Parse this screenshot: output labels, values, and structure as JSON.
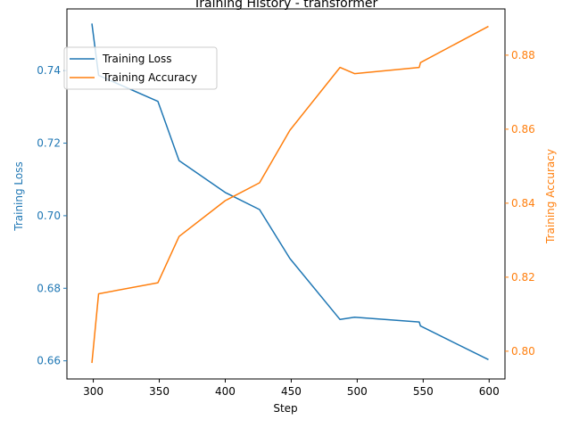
{
  "chart_data": {
    "type": "line",
    "title": "Training History - transformer",
    "xlabel": "Step",
    "ylabel_left": "Training Loss",
    "ylabel_right": "Training Accuracy",
    "xlim": [
      280,
      612
    ],
    "xticks": [
      300,
      350,
      400,
      450,
      500,
      550,
      600
    ],
    "ylim_left": [
      0.655,
      0.757
    ],
    "yticks_left": [
      0.66,
      0.68,
      0.7,
      0.72,
      0.74
    ],
    "ylim_right": [
      0.7925,
      0.8925
    ],
    "yticks_right": [
      0.8,
      0.82,
      0.84,
      0.86,
      0.88
    ],
    "left_color": "#1f77b4",
    "right_color": "#ff7f0e",
    "legend_position": "upper-left",
    "series": [
      {
        "name": "Training Loss",
        "axis": "left",
        "color": "#1f77b4",
        "x": [
          299,
          304,
          349,
          365,
          400,
          426,
          449,
          487,
          498,
          547,
          548,
          599
        ],
        "y": [
          0.7528,
          0.7387,
          0.7315,
          0.7152,
          0.7064,
          0.7017,
          0.6882,
          0.6714,
          0.672,
          0.6707,
          0.6696,
          0.6604
        ]
      },
      {
        "name": "Training Accuracy",
        "axis": "right",
        "color": "#ff7f0e",
        "x": [
          299,
          304,
          349,
          365,
          400,
          426,
          449,
          487,
          498,
          547,
          548,
          599
        ],
        "y": [
          0.797,
          0.8155,
          0.8185,
          0.831,
          0.8407,
          0.8455,
          0.8597,
          0.8767,
          0.875,
          0.8767,
          0.878,
          0.8877
        ]
      }
    ]
  }
}
